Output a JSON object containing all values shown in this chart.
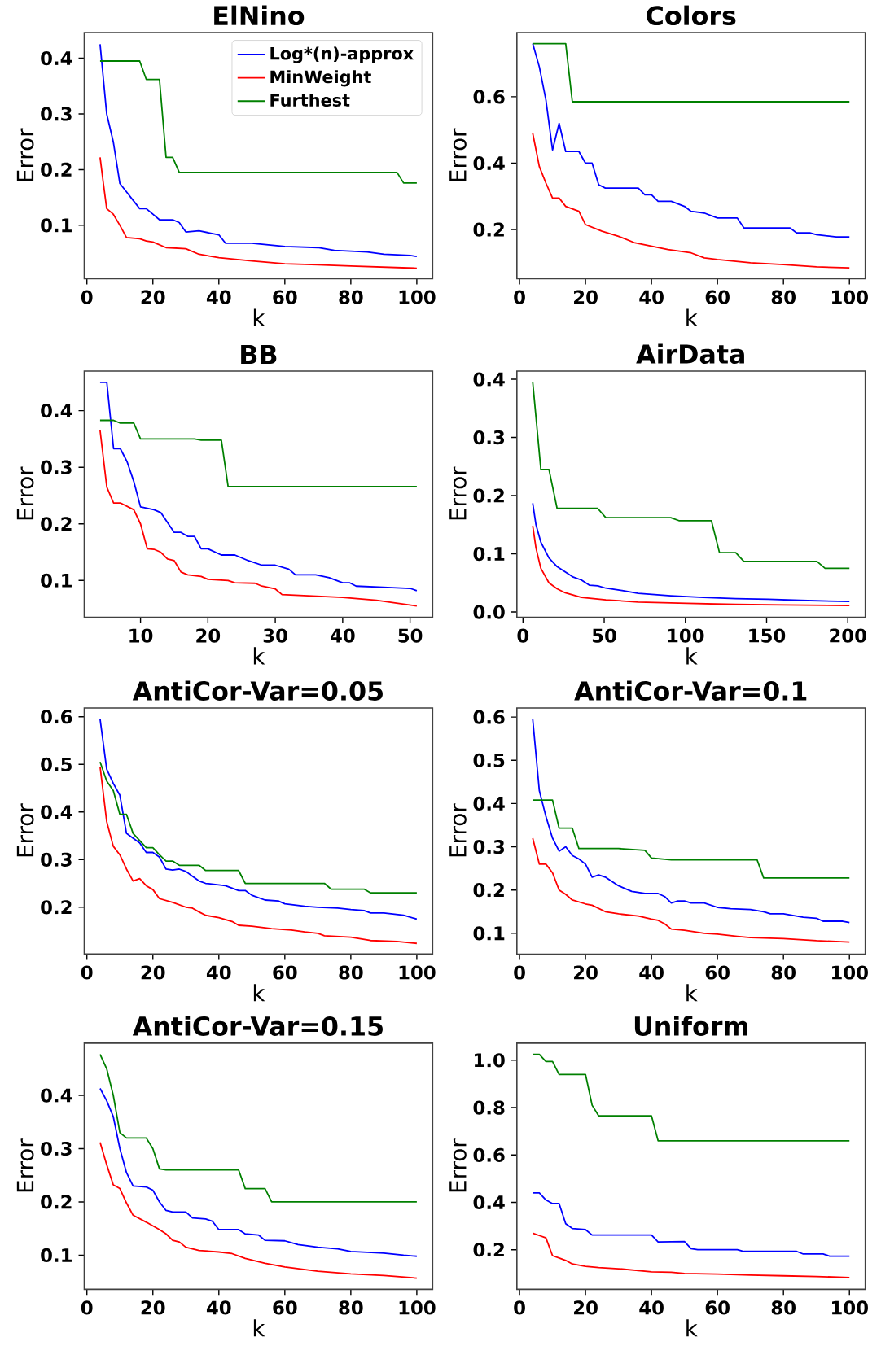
{
  "chart_data": [
    {
      "type": "line",
      "title": "ElNino",
      "xlabel": "k",
      "ylabel": "Error",
      "legend": "top right",
      "xlim": [
        -0.8,
        104.8
      ],
      "ylim": [
        0.004,
        0.446
      ],
      "xticks": [
        0,
        20,
        40,
        60,
        80,
        100
      ],
      "yticks": [
        0.1,
        0.2,
        0.3,
        0.4
      ],
      "series": [
        {
          "name": "Log*(n)-approx",
          "color": "#0000ff",
          "x": [
            4,
            6,
            8,
            10,
            12,
            14,
            16,
            18,
            20,
            22,
            26,
            28,
            30,
            34,
            40,
            42,
            50,
            60,
            70,
            75,
            85,
            90,
            98,
            100
          ],
          "values": [
            0.425,
            0.3,
            0.25,
            0.175,
            0.16,
            0.145,
            0.13,
            0.13,
            0.12,
            0.11,
            0.11,
            0.105,
            0.088,
            0.09,
            0.083,
            0.068,
            0.068,
            0.062,
            0.06,
            0.055,
            0.052,
            0.048,
            0.046,
            0.044
          ]
        },
        {
          "name": "MinWeight",
          "color": "#ff0000",
          "x": [
            4,
            5,
            6,
            8,
            10,
            12,
            16,
            18,
            20,
            24,
            30,
            34,
            40,
            50,
            60,
            70,
            80,
            90,
            100
          ],
          "values": [
            0.222,
            0.175,
            0.13,
            0.12,
            0.1,
            0.078,
            0.076,
            0.072,
            0.07,
            0.06,
            0.058,
            0.048,
            0.042,
            0.036,
            0.031,
            0.029,
            0.027,
            0.025,
            0.023
          ]
        },
        {
          "name": "Furthest",
          "color": "#008000",
          "x": [
            4,
            16,
            18,
            22,
            24,
            26,
            28,
            94,
            96,
            100
          ],
          "values": [
            0.395,
            0.395,
            0.362,
            0.362,
            0.222,
            0.222,
            0.195,
            0.195,
            0.176,
            0.176
          ]
        }
      ]
    },
    {
      "type": "line",
      "title": "Colors",
      "xlabel": "k",
      "ylabel": "Error",
      "xlim": [
        -0.8,
        104.8
      ],
      "ylim": [
        0.052,
        0.793
      ],
      "xticks": [
        0,
        20,
        40,
        60,
        80,
        100
      ],
      "yticks": [
        0.2,
        0.4,
        0.6
      ],
      "series": [
        {
          "color": "#0000ff",
          "x": [
            4,
            6,
            8,
            10,
            12,
            14,
            18,
            20,
            22,
            24,
            26,
            36,
            38,
            40,
            42,
            46,
            50,
            52,
            56,
            60,
            66,
            68,
            82,
            84,
            88,
            90,
            96,
            100
          ],
          "values": [
            0.76,
            0.69,
            0.59,
            0.44,
            0.52,
            0.435,
            0.435,
            0.4,
            0.4,
            0.335,
            0.325,
            0.325,
            0.305,
            0.305,
            0.285,
            0.285,
            0.27,
            0.255,
            0.25,
            0.235,
            0.235,
            0.205,
            0.205,
            0.19,
            0.19,
            0.185,
            0.178,
            0.178
          ]
        },
        {
          "color": "#ff0000",
          "x": [
            4,
            6,
            8,
            10,
            12,
            14,
            18,
            20,
            25,
            30,
            35,
            40,
            45,
            52,
            56,
            60,
            70,
            80,
            90,
            100
          ],
          "values": [
            0.49,
            0.39,
            0.34,
            0.295,
            0.295,
            0.27,
            0.255,
            0.215,
            0.195,
            0.18,
            0.16,
            0.15,
            0.14,
            0.13,
            0.115,
            0.11,
            0.1,
            0.095,
            0.088,
            0.085
          ]
        },
        {
          "color": "#008000",
          "x": [
            4,
            14,
            16,
            100
          ],
          "values": [
            0.76,
            0.76,
            0.585,
            0.585
          ]
        }
      ]
    },
    {
      "type": "line",
      "title": "BB",
      "xlabel": "k",
      "ylabel": "Error",
      "xlim": [
        1.65,
        53.35
      ],
      "ylim": [
        0.035,
        0.47
      ],
      "xticks": [
        10,
        20,
        30,
        40,
        50
      ],
      "yticks": [
        0.1,
        0.2,
        0.3,
        0.4
      ],
      "series": [
        {
          "color": "#0000ff",
          "x": [
            4,
            5,
            6,
            7,
            8,
            9,
            10,
            12,
            13,
            15,
            16,
            17,
            18,
            19,
            20,
            22,
            24,
            26,
            28,
            30,
            32,
            33,
            36,
            38,
            40,
            41,
            42,
            46,
            50,
            51
          ],
          "values": [
            0.45,
            0.45,
            0.333,
            0.333,
            0.31,
            0.275,
            0.23,
            0.225,
            0.22,
            0.185,
            0.185,
            0.178,
            0.178,
            0.156,
            0.156,
            0.145,
            0.145,
            0.135,
            0.127,
            0.127,
            0.12,
            0.11,
            0.11,
            0.105,
            0.096,
            0.096,
            0.09,
            0.088,
            0.086,
            0.082
          ]
        },
        {
          "color": "#ff0000",
          "x": [
            4,
            5,
            6,
            7,
            9,
            10,
            11,
            12,
            13,
            14,
            15,
            16,
            17,
            19,
            20,
            23,
            24,
            27,
            28,
            30,
            31,
            40,
            45,
            51
          ],
          "values": [
            0.365,
            0.265,
            0.237,
            0.237,
            0.225,
            0.2,
            0.156,
            0.155,
            0.15,
            0.138,
            0.135,
            0.115,
            0.11,
            0.107,
            0.102,
            0.1,
            0.096,
            0.095,
            0.09,
            0.085,
            0.075,
            0.07,
            0.065,
            0.055
          ]
        },
        {
          "color": "#008000",
          "x": [
            4,
            6,
            7,
            9,
            10,
            18,
            19,
            22,
            23,
            51
          ],
          "values": [
            0.383,
            0.383,
            0.378,
            0.378,
            0.35,
            0.35,
            0.348,
            0.348,
            0.266,
            0.266
          ]
        }
      ]
    },
    {
      "type": "line",
      "title": "AirData",
      "xlabel": "k",
      "ylabel": "Error",
      "xlim": [
        -3.75,
        210.75
      ],
      "ylim": [
        -0.009,
        0.414
      ],
      "xticks": [
        0,
        50,
        100,
        150,
        200
      ],
      "yticks": [
        {
          "value": 0,
          "label": "0.0"
        },
        0.1,
        0.2,
        0.3,
        0.4
      ],
      "series": [
        {
          "color": "#0000ff",
          "x": [
            6,
            8,
            11,
            16,
            21,
            31,
            36,
            41,
            46,
            51,
            61,
            71,
            91,
            111,
            131,
            151,
            171,
            201
          ],
          "values": [
            0.187,
            0.15,
            0.12,
            0.093,
            0.078,
            0.06,
            0.055,
            0.046,
            0.045,
            0.041,
            0.037,
            0.032,
            0.028,
            0.025,
            0.023,
            0.022,
            0.02,
            0.018
          ]
        },
        {
          "color": "#ff0000",
          "x": [
            6,
            8,
            11,
            16,
            21,
            26,
            36,
            51,
            71,
            101,
            131,
            161,
            201
          ],
          "values": [
            0.148,
            0.11,
            0.075,
            0.05,
            0.04,
            0.033,
            0.025,
            0.021,
            0.017,
            0.015,
            0.013,
            0.012,
            0.011
          ]
        },
        {
          "color": "#008000",
          "x": [
            6,
            11,
            16,
            21,
            46,
            51,
            91,
            96,
            116,
            121,
            131,
            136,
            181,
            186,
            201
          ],
          "values": [
            0.395,
            0.245,
            0.245,
            0.178,
            0.178,
            0.162,
            0.162,
            0.157,
            0.157,
            0.102,
            0.102,
            0.087,
            0.087,
            0.075,
            0.075
          ]
        }
      ]
    },
    {
      "type": "line",
      "title": "AntiCor-Var=0.05",
      "xlabel": "k",
      "ylabel": "Error",
      "xlim": [
        -0.8,
        104.8
      ],
      "ylim": [
        0.1015,
        0.6185
      ],
      "xticks": [
        0,
        20,
        40,
        60,
        80,
        100
      ],
      "yticks": [
        0.2,
        0.3,
        0.4,
        0.5,
        0.6
      ],
      "series": [
        {
          "color": "#0000ff",
          "x": [
            4,
            6,
            8,
            10,
            12,
            14,
            16,
            18,
            20,
            22,
            24,
            26,
            28,
            30,
            32,
            34,
            36,
            42,
            46,
            48,
            50,
            54,
            58,
            60,
            66,
            70,
            76,
            80,
            84,
            86,
            90,
            96,
            100
          ],
          "values": [
            0.595,
            0.49,
            0.46,
            0.435,
            0.355,
            0.345,
            0.335,
            0.315,
            0.315,
            0.305,
            0.28,
            0.278,
            0.28,
            0.275,
            0.265,
            0.255,
            0.25,
            0.245,
            0.235,
            0.235,
            0.225,
            0.215,
            0.213,
            0.207,
            0.202,
            0.2,
            0.198,
            0.195,
            0.193,
            0.188,
            0.188,
            0.183,
            0.175
          ]
        },
        {
          "color": "#ff0000",
          "x": [
            4,
            6,
            8,
            10,
            12,
            14,
            16,
            18,
            20,
            22,
            26,
            30,
            32,
            34,
            36,
            40,
            44,
            46,
            50,
            56,
            62,
            66,
            70,
            72,
            80,
            86,
            94,
            100
          ],
          "values": [
            0.495,
            0.38,
            0.328,
            0.31,
            0.28,
            0.255,
            0.26,
            0.245,
            0.237,
            0.218,
            0.21,
            0.2,
            0.198,
            0.19,
            0.183,
            0.178,
            0.17,
            0.162,
            0.16,
            0.155,
            0.152,
            0.148,
            0.145,
            0.14,
            0.137,
            0.13,
            0.128,
            0.124
          ]
        },
        {
          "color": "#008000",
          "x": [
            4,
            6,
            8,
            10,
            12,
            14,
            16,
            18,
            20,
            22,
            24,
            26,
            28,
            34,
            36,
            46,
            48,
            72,
            74,
            84,
            86,
            100
          ],
          "values": [
            0.505,
            0.465,
            0.445,
            0.395,
            0.395,
            0.355,
            0.34,
            0.325,
            0.325,
            0.31,
            0.297,
            0.297,
            0.288,
            0.288,
            0.277,
            0.277,
            0.25,
            0.25,
            0.238,
            0.238,
            0.23,
            0.23
          ]
        }
      ]
    },
    {
      "type": "line",
      "title": "AntiCor-Var=0.1",
      "xlabel": "k",
      "ylabel": "Error",
      "xlim": [
        -0.8,
        104.8
      ],
      "ylim": [
        0.052,
        0.621
      ],
      "xticks": [
        0,
        20,
        40,
        60,
        80,
        100
      ],
      "yticks": [
        0.1,
        0.2,
        0.3,
        0.4,
        0.5,
        0.6
      ],
      "series": [
        {
          "color": "#0000ff",
          "x": [
            4,
            6,
            8,
            10,
            12,
            14,
            16,
            18,
            20,
            22,
            24,
            26,
            30,
            34,
            38,
            42,
            44,
            46,
            48,
            50,
            52,
            56,
            60,
            64,
            70,
            74,
            76,
            80,
            86,
            90,
            92,
            98,
            100
          ],
          "values": [
            0.595,
            0.43,
            0.37,
            0.32,
            0.29,
            0.3,
            0.28,
            0.272,
            0.26,
            0.23,
            0.235,
            0.23,
            0.21,
            0.197,
            0.192,
            0.192,
            0.185,
            0.17,
            0.175,
            0.175,
            0.17,
            0.17,
            0.16,
            0.157,
            0.155,
            0.15,
            0.145,
            0.145,
            0.137,
            0.135,
            0.128,
            0.128,
            0.125
          ]
        },
        {
          "color": "#ff0000",
          "x": [
            4,
            6,
            8,
            10,
            12,
            14,
            16,
            20,
            22,
            26,
            30,
            36,
            40,
            42,
            44,
            46,
            50,
            56,
            60,
            66,
            70,
            80,
            90,
            100
          ],
          "values": [
            0.32,
            0.26,
            0.26,
            0.24,
            0.2,
            0.19,
            0.177,
            0.168,
            0.165,
            0.15,
            0.145,
            0.14,
            0.133,
            0.13,
            0.122,
            0.11,
            0.107,
            0.1,
            0.098,
            0.093,
            0.09,
            0.088,
            0.083,
            0.08
          ]
        },
        {
          "color": "#008000",
          "x": [
            4,
            10,
            12,
            16,
            18,
            30,
            38,
            40,
            46,
            72,
            74,
            100
          ],
          "values": [
            0.408,
            0.408,
            0.343,
            0.343,
            0.296,
            0.296,
            0.292,
            0.274,
            0.27,
            0.27,
            0.228,
            0.228
          ]
        }
      ]
    },
    {
      "type": "line",
      "title": "AntiCor-Var=0.15",
      "xlabel": "k",
      "ylabel": "Error",
      "xlim": [
        -0.8,
        104.8
      ],
      "ylim": [
        0.036,
        0.498
      ],
      "xticks": [
        0,
        20,
        40,
        60,
        80,
        100
      ],
      "yticks": [
        0.1,
        0.2,
        0.3,
        0.4
      ],
      "series": [
        {
          "color": "#0000ff",
          "x": [
            4,
            6,
            8,
            10,
            12,
            14,
            18,
            20,
            22,
            24,
            26,
            30,
            32,
            36,
            38,
            40,
            46,
            48,
            52,
            54,
            60,
            64,
            70,
            76,
            80,
            90,
            96,
            100
          ],
          "values": [
            0.413,
            0.39,
            0.36,
            0.3,
            0.255,
            0.23,
            0.228,
            0.222,
            0.2,
            0.184,
            0.181,
            0.181,
            0.17,
            0.168,
            0.164,
            0.148,
            0.148,
            0.14,
            0.138,
            0.128,
            0.127,
            0.12,
            0.115,
            0.112,
            0.107,
            0.104,
            0.1,
            0.098
          ]
        },
        {
          "color": "#ff0000",
          "x": [
            4,
            6,
            8,
            10,
            12,
            14,
            18,
            22,
            24,
            26,
            28,
            30,
            34,
            40,
            44,
            48,
            54,
            60,
            70,
            80,
            90,
            100
          ],
          "values": [
            0.312,
            0.27,
            0.232,
            0.225,
            0.198,
            0.175,
            0.162,
            0.148,
            0.14,
            0.128,
            0.125,
            0.115,
            0.109,
            0.106,
            0.103,
            0.094,
            0.085,
            0.078,
            0.07,
            0.065,
            0.062,
            0.057
          ]
        },
        {
          "color": "#008000",
          "x": [
            4,
            6,
            8,
            10,
            12,
            18,
            20,
            22,
            24,
            46,
            48,
            54,
            56,
            100
          ],
          "values": [
            0.477,
            0.45,
            0.4,
            0.33,
            0.32,
            0.32,
            0.3,
            0.262,
            0.26,
            0.26,
            0.225,
            0.225,
            0.2,
            0.2
          ]
        }
      ]
    },
    {
      "type": "line",
      "title": "Uniform",
      "xlabel": "k",
      "ylabel": "Error",
      "xlim": [
        -0.8,
        104.8
      ],
      "ylim": [
        0.033,
        1.072
      ],
      "xticks": [
        0,
        20,
        40,
        60,
        80,
        100
      ],
      "yticks": [
        0.2,
        0.4,
        0.6,
        0.8,
        {
          "value": 1,
          "label": "1.0"
        }
      ],
      "series": [
        {
          "color": "#0000ff",
          "x": [
            4,
            6,
            8,
            10,
            12,
            14,
            16,
            20,
            22,
            40,
            42,
            50,
            52,
            54,
            66,
            68,
            84,
            86,
            92,
            94,
            100
          ],
          "values": [
            0.44,
            0.44,
            0.41,
            0.395,
            0.395,
            0.31,
            0.29,
            0.285,
            0.262,
            0.262,
            0.233,
            0.235,
            0.205,
            0.2,
            0.2,
            0.193,
            0.193,
            0.182,
            0.182,
            0.173,
            0.173
          ]
        },
        {
          "color": "#ff0000",
          "x": [
            4,
            6,
            8,
            10,
            12,
            14,
            16,
            20,
            24,
            30,
            40,
            46,
            50,
            60,
            70,
            80,
            90,
            100
          ],
          "values": [
            0.27,
            0.26,
            0.25,
            0.175,
            0.165,
            0.155,
            0.14,
            0.13,
            0.125,
            0.12,
            0.107,
            0.105,
            0.1,
            0.097,
            0.093,
            0.09,
            0.087,
            0.083
          ]
        },
        {
          "color": "#008000",
          "x": [
            4,
            6,
            8,
            10,
            12,
            20,
            22,
            24,
            40,
            42,
            100
          ],
          "values": [
            1.025,
            1.025,
            0.995,
            0.995,
            0.94,
            0.94,
            0.81,
            0.765,
            0.765,
            0.66,
            0.66
          ]
        }
      ]
    }
  ]
}
